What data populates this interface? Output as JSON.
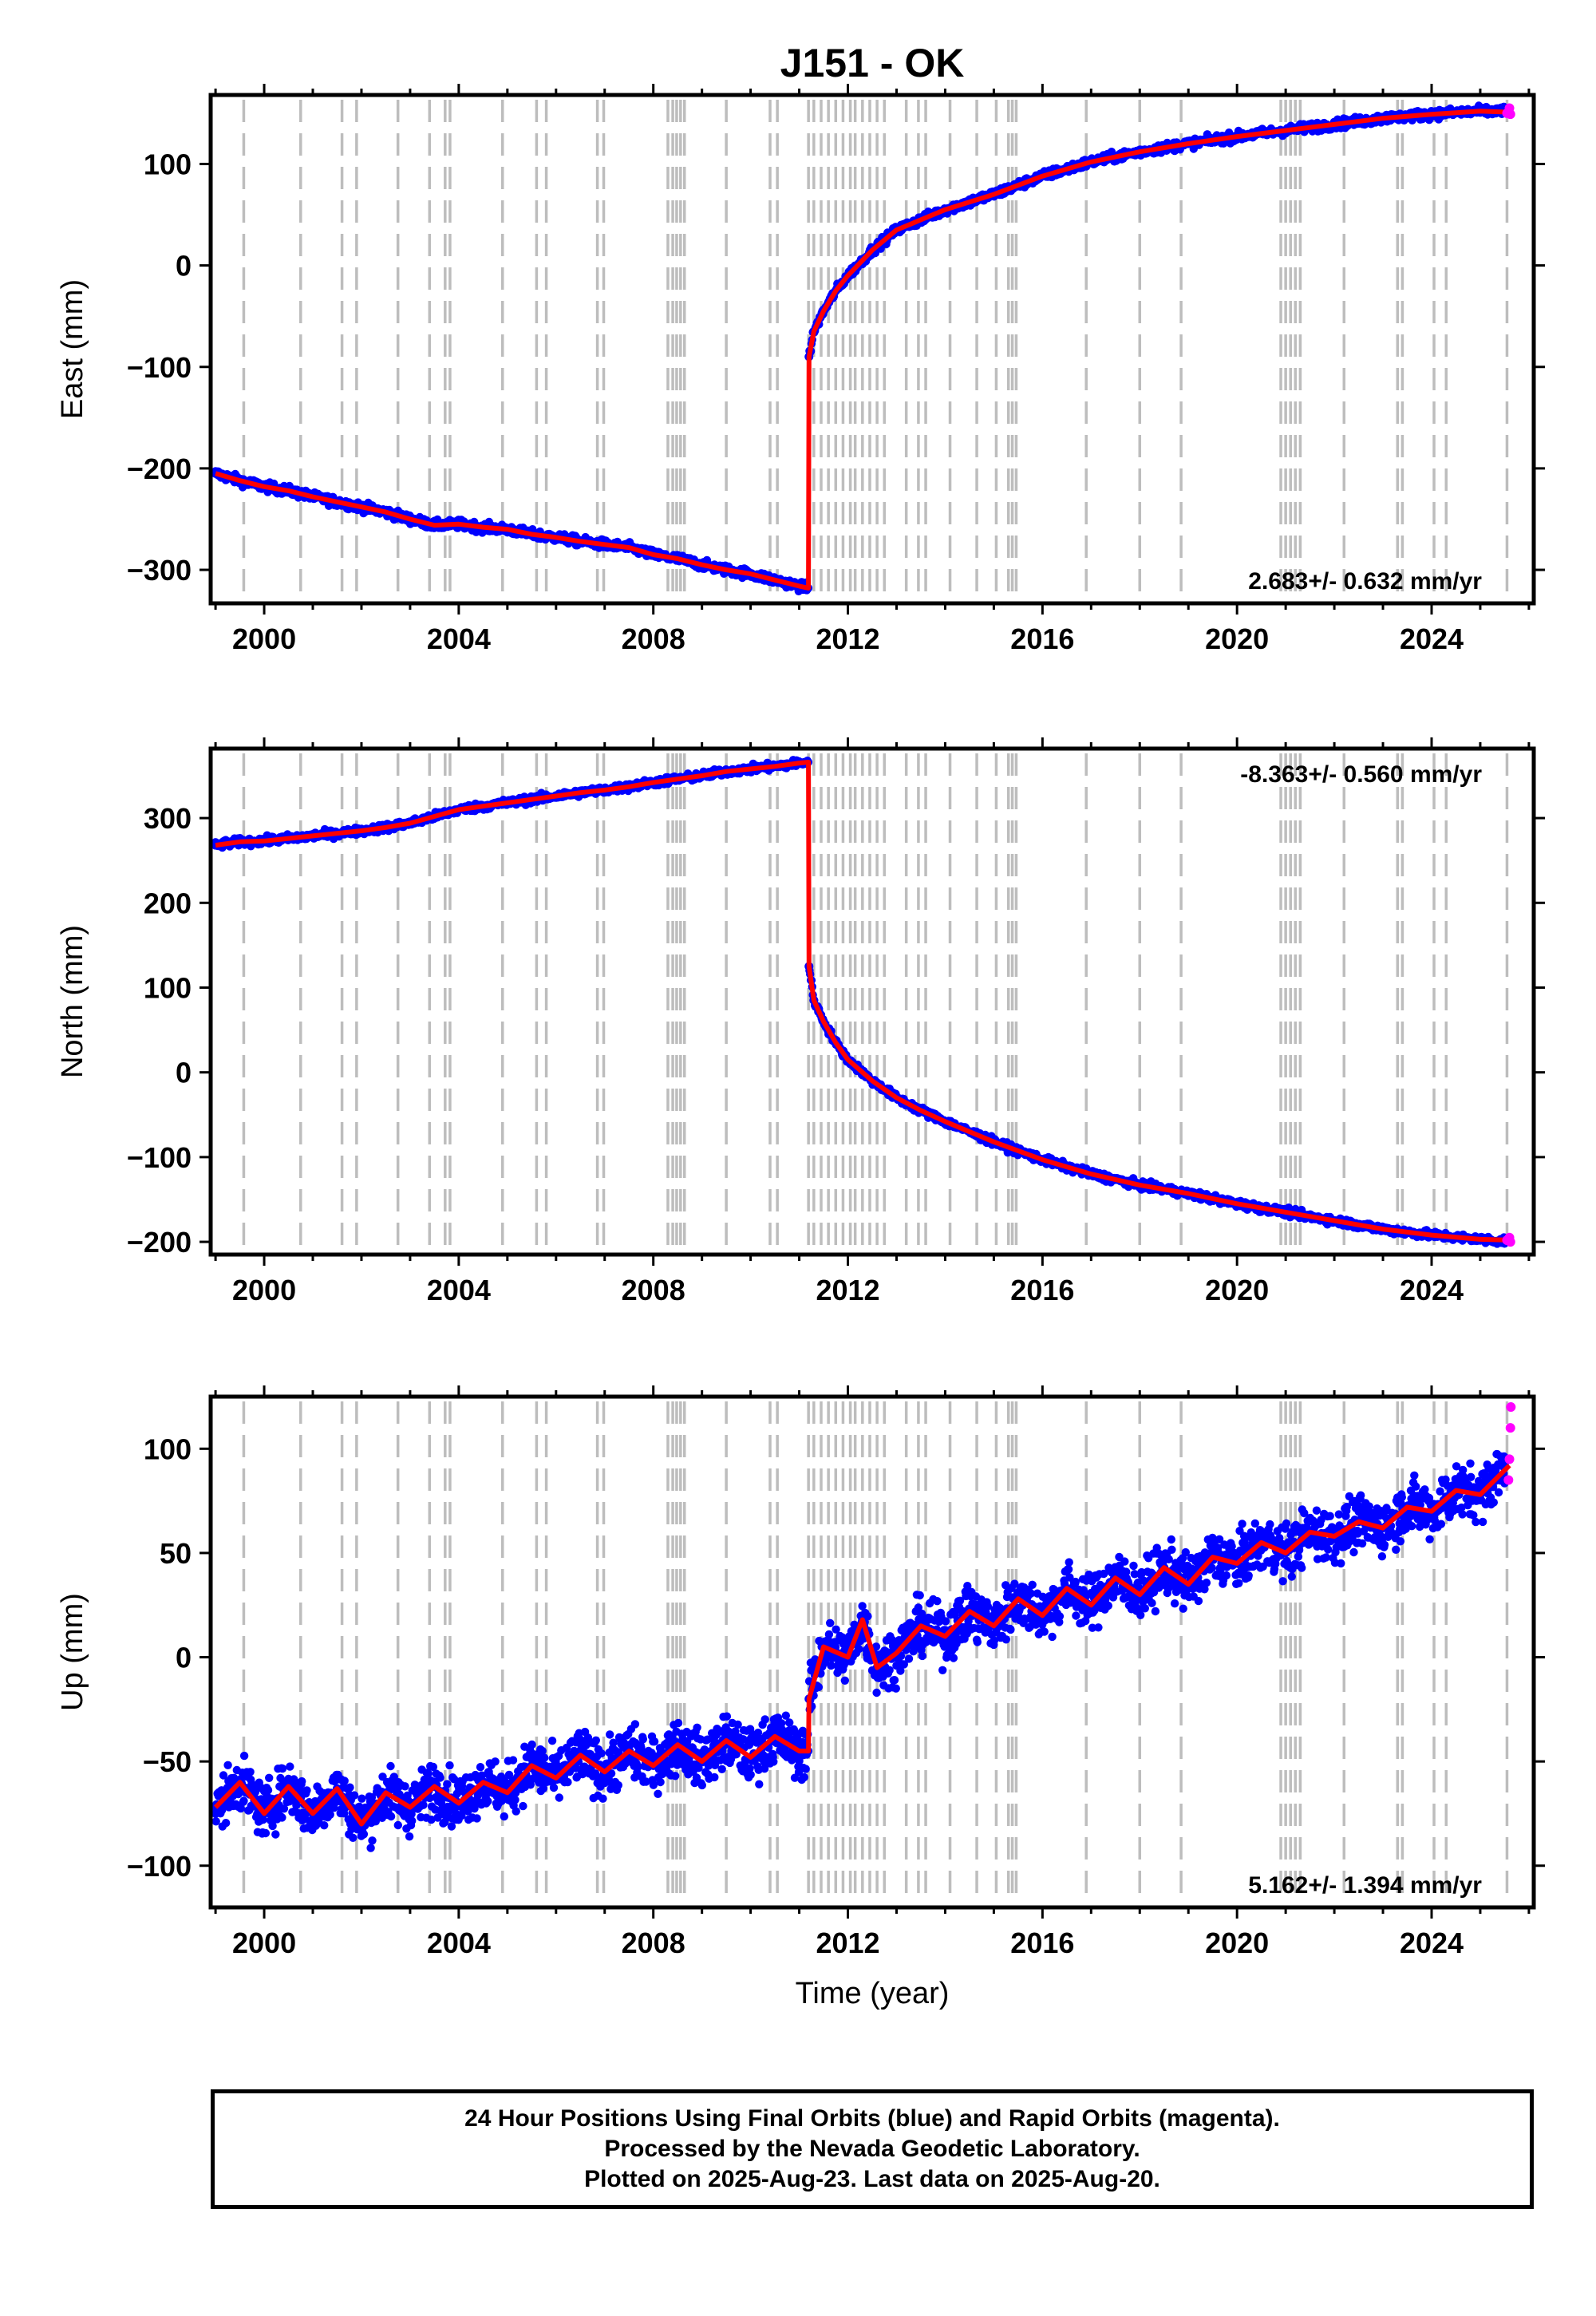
{
  "title": "J151 - OK",
  "chart_data": [
    {
      "type": "scatter",
      "panel": "east",
      "ylabel": "East (mm)",
      "xlabel": "",
      "xlim": [
        1998.9,
        2026.1
      ],
      "ylim": [
        -333,
        168
      ],
      "xticks": [
        2000,
        2004,
        2008,
        2012,
        2016,
        2020,
        2024
      ],
      "yticks": [
        100,
        0,
        -100,
        -200,
        -300
      ],
      "rate_text": "2.683+/- 0.632 mm/yr",
      "rate_position": "bottom-right",
      "jump_year": 2011.19,
      "series": [
        {
          "name": "Final Orbits",
          "color": "#0000ff",
          "kind": "points",
          "x": [
            1999.0,
            1999.5,
            2000.0,
            2000.5,
            2001.0,
            2001.5,
            2002.0,
            2002.5,
            2003.0,
            2003.5,
            2004.0,
            2004.5,
            2005.0,
            2005.5,
            2006.0,
            2006.5,
            2007.0,
            2007.5,
            2008.0,
            2008.5,
            2009.0,
            2009.5,
            2010.0,
            2010.5,
            2011.0,
            2011.18,
            2011.2,
            2011.3,
            2011.5,
            2011.75,
            2012.0,
            2012.5,
            2013.0,
            2013.5,
            2014.0,
            2015.0,
            2016.0,
            2017.0,
            2018.0,
            2019.0,
            2020.0,
            2021.0,
            2022.0,
            2023.0,
            2024.0,
            2025.0,
            2025.5
          ],
          "y": [
            -205,
            -212,
            -218,
            -222,
            -228,
            -233,
            -238,
            -243,
            -250,
            -256,
            -255,
            -258,
            -260,
            -265,
            -268,
            -272,
            -275,
            -278,
            -285,
            -289,
            -295,
            -300,
            -304,
            -310,
            -316,
            -318,
            -90,
            -65,
            -45,
            -25,
            -10,
            15,
            35,
            45,
            55,
            70,
            88,
            102,
            112,
            120,
            127,
            133,
            139,
            145,
            149,
            152,
            152
          ]
        },
        {
          "name": "Rapid Orbits",
          "color": "#ff00ff",
          "kind": "points",
          "x": [
            2025.55,
            2025.6,
            2025.62
          ],
          "y": [
            150,
            155,
            149
          ]
        },
        {
          "name": "Model",
          "color": "#ff0000",
          "kind": "line",
          "x": [
            1999.0,
            1999.5,
            2000.0,
            2000.5,
            2001.0,
            2001.5,
            2002.0,
            2002.5,
            2003.0,
            2003.5,
            2004.0,
            2004.5,
            2005.0,
            2005.5,
            2006.0,
            2006.5,
            2007.0,
            2007.5,
            2008.0,
            2008.5,
            2009.0,
            2009.5,
            2010.0,
            2010.5,
            2011.0,
            2011.19,
            2011.2,
            2011.3,
            2011.5,
            2011.75,
            2012.0,
            2012.5,
            2013.0,
            2013.5,
            2014.0,
            2015.0,
            2016.0,
            2017.0,
            2018.0,
            2019.0,
            2020.0,
            2021.0,
            2022.0,
            2023.0,
            2024.0,
            2025.0,
            2025.6
          ],
          "y": [
            -205,
            -212,
            -218,
            -222,
            -228,
            -233,
            -238,
            -243,
            -250,
            -256,
            -255,
            -258,
            -260,
            -265,
            -268,
            -272,
            -275,
            -278,
            -285,
            -289,
            -295,
            -300,
            -304,
            -310,
            -316,
            -318,
            -90,
            -65,
            -45,
            -25,
            -10,
            15,
            35,
            45,
            55,
            70,
            88,
            102,
            112,
            120,
            127,
            133,
            139,
            145,
            149,
            152,
            151
          ]
        }
      ]
    },
    {
      "type": "scatter",
      "panel": "north",
      "ylabel": "North (mm)",
      "xlabel": "",
      "xlim": [
        1998.9,
        2026.1
      ],
      "ylim": [
        -215,
        382
      ],
      "xticks": [
        2000,
        2004,
        2008,
        2012,
        2016,
        2020,
        2024
      ],
      "yticks": [
        300,
        200,
        100,
        0,
        -100,
        -200
      ],
      "rate_text": "-8.363+/- 0.560 mm/yr",
      "rate_position": "top-right",
      "jump_year": 2011.19,
      "series": [
        {
          "name": "Final Orbits",
          "color": "#0000ff",
          "kind": "points",
          "x": [
            1999.0,
            1999.5,
            2000.0,
            2000.5,
            2001.0,
            2001.5,
            2002.0,
            2002.5,
            2003.0,
            2003.5,
            2004.0,
            2004.5,
            2005.0,
            2005.5,
            2006.0,
            2006.5,
            2007.0,
            2007.5,
            2008.0,
            2008.5,
            2009.0,
            2009.5,
            2010.0,
            2010.5,
            2011.0,
            2011.18,
            2011.2,
            2011.3,
            2011.5,
            2011.75,
            2012.0,
            2012.5,
            2013.0,
            2013.5,
            2014.0,
            2015.0,
            2016.0,
            2017.0,
            2018.0,
            2019.0,
            2020.0,
            2021.0,
            2022.0,
            2023.0,
            2024.0,
            2025.0,
            2025.5
          ],
          "y": [
            268,
            272,
            273,
            276,
            279,
            282,
            285,
            289,
            294,
            302,
            310,
            314,
            318,
            322,
            326,
            330,
            333,
            337,
            342,
            346,
            350,
            355,
            358,
            361,
            365,
            366,
            125,
            85,
            60,
            35,
            15,
            -10,
            -30,
            -45,
            -58,
            -82,
            -103,
            -120,
            -133,
            -143,
            -155,
            -165,
            -175,
            -185,
            -192,
            -197,
            -199
          ]
        },
        {
          "name": "Rapid Orbits",
          "color": "#ff00ff",
          "kind": "points",
          "x": [
            2025.55,
            2025.6,
            2025.62
          ],
          "y": [
            -198,
            -195,
            -200
          ]
        },
        {
          "name": "Model",
          "color": "#ff0000",
          "kind": "line",
          "x": [
            1999.0,
            1999.5,
            2000.0,
            2000.5,
            2001.0,
            2001.5,
            2002.0,
            2002.5,
            2003.0,
            2003.5,
            2004.0,
            2004.5,
            2005.0,
            2005.5,
            2006.0,
            2006.5,
            2007.0,
            2007.5,
            2008.0,
            2008.5,
            2009.0,
            2009.5,
            2010.0,
            2010.5,
            2011.0,
            2011.19,
            2011.2,
            2011.3,
            2011.5,
            2011.75,
            2012.0,
            2012.5,
            2013.0,
            2013.5,
            2014.0,
            2015.0,
            2016.0,
            2017.0,
            2018.0,
            2019.0,
            2020.0,
            2021.0,
            2022.0,
            2023.0,
            2024.0,
            2025.0,
            2025.6
          ],
          "y": [
            268,
            272,
            273,
            276,
            279,
            282,
            285,
            289,
            294,
            302,
            310,
            314,
            318,
            322,
            326,
            330,
            333,
            337,
            342,
            346,
            350,
            355,
            358,
            361,
            365,
            366,
            125,
            85,
            60,
            35,
            15,
            -10,
            -30,
            -45,
            -58,
            -82,
            -103,
            -120,
            -133,
            -143,
            -155,
            -165,
            -175,
            -185,
            -192,
            -197,
            -198
          ]
        }
      ]
    },
    {
      "type": "scatter",
      "panel": "up",
      "ylabel": "Up (mm)",
      "xlabel": "Time (year)",
      "xlim": [
        1998.9,
        2026.1
      ],
      "ylim": [
        -120,
        125
      ],
      "xticks": [
        2000,
        2004,
        2008,
        2012,
        2016,
        2020,
        2024
      ],
      "yticks": [
        100,
        50,
        0,
        -50,
        -100
      ],
      "rate_text": "5.162+/- 1.394 mm/yr",
      "rate_position": "bottom-right",
      "jump_year": 2011.19,
      "series": [
        {
          "name": "Final Orbits",
          "color": "#0000ff",
          "kind": "points",
          "x": [
            1999.0,
            1999.5,
            2000.0,
            2000.5,
            2001.0,
            2001.5,
            2002.0,
            2002.5,
            2003.0,
            2003.5,
            2004.0,
            2004.5,
            2005.0,
            2005.5,
            2006.0,
            2006.5,
            2007.0,
            2007.5,
            2008.0,
            2008.5,
            2009.0,
            2009.5,
            2010.0,
            2010.5,
            2011.0,
            2011.18,
            2011.2,
            2011.5,
            2012.0,
            2012.3,
            2012.6,
            2013.0,
            2013.5,
            2014.0,
            2014.5,
            2015.0,
            2015.5,
            2016.0,
            2016.5,
            2017.0,
            2017.5,
            2018.0,
            2018.5,
            2019.0,
            2019.5,
            2020.0,
            2020.5,
            2021.0,
            2021.5,
            2022.0,
            2022.5,
            2023.0,
            2023.5,
            2024.0,
            2024.5,
            2025.0,
            2025.5
          ],
          "y": [
            -72,
            -60,
            -75,
            -62,
            -75,
            -63,
            -80,
            -65,
            -72,
            -62,
            -70,
            -60,
            -65,
            -52,
            -58,
            -47,
            -55,
            -45,
            -52,
            -42,
            -50,
            -40,
            -48,
            -38,
            -45,
            -45,
            -20,
            5,
            0,
            18,
            -5,
            2,
            15,
            10,
            22,
            15,
            28,
            20,
            33,
            25,
            38,
            30,
            43,
            35,
            48,
            45,
            55,
            50,
            60,
            58,
            65,
            62,
            72,
            70,
            80,
            78,
            92
          ]
        },
        {
          "name": "Rapid Orbits",
          "color": "#ff00ff",
          "kind": "points",
          "x": [
            2025.58,
            2025.6,
            2025.62,
            2025.63
          ],
          "y": [
            85,
            95,
            110,
            120
          ]
        },
        {
          "name": "Model",
          "color": "#ff0000",
          "kind": "line",
          "x": [
            1999.0,
            1999.5,
            2000.0,
            2000.5,
            2001.0,
            2001.5,
            2002.0,
            2002.5,
            2003.0,
            2003.5,
            2004.0,
            2004.5,
            2005.0,
            2005.5,
            2006.0,
            2006.5,
            2007.0,
            2007.5,
            2008.0,
            2008.5,
            2009.0,
            2009.5,
            2010.0,
            2010.5,
            2011.0,
            2011.19,
            2011.2,
            2011.5,
            2012.0,
            2012.3,
            2012.6,
            2013.0,
            2013.5,
            2014.0,
            2014.5,
            2015.0,
            2015.5,
            2016.0,
            2016.5,
            2017.0,
            2017.5,
            2018.0,
            2018.5,
            2019.0,
            2019.5,
            2020.0,
            2020.5,
            2021.0,
            2021.5,
            2022.0,
            2022.5,
            2023.0,
            2023.5,
            2024.0,
            2024.5,
            2025.0,
            2025.6
          ],
          "y": [
            -72,
            -60,
            -75,
            -62,
            -75,
            -63,
            -80,
            -65,
            -72,
            -62,
            -70,
            -60,
            -65,
            -52,
            -58,
            -47,
            -55,
            -45,
            -52,
            -42,
            -50,
            -40,
            -48,
            -38,
            -45,
            -45,
            -20,
            5,
            0,
            18,
            -5,
            2,
            15,
            10,
            22,
            15,
            28,
            20,
            33,
            25,
            38,
            30,
            43,
            35,
            48,
            45,
            55,
            50,
            60,
            58,
            65,
            62,
            72,
            70,
            80,
            78,
            92
          ]
        }
      ]
    }
  ],
  "event_lines": [
    1999.58,
    2000.75,
    2001.6,
    2001.9,
    2002.75,
    2003.4,
    2003.72,
    2003.82,
    2004.9,
    2005.6,
    2005.8,
    2006.85,
    2006.98,
    2008.3,
    2008.4,
    2008.48,
    2008.56,
    2008.64,
    2009.5,
    2010.4,
    2010.55,
    2011.19,
    2011.3,
    2011.45,
    2011.6,
    2011.75,
    2011.9,
    2012.05,
    2012.15,
    2012.3,
    2012.45,
    2012.6,
    2012.75,
    2013.2,
    2013.45,
    2013.6,
    2014.1,
    2014.65,
    2015.05,
    2015.3,
    2015.38,
    2015.46,
    2016.9,
    2018.0,
    2018.85,
    2020.9,
    2021.0,
    2021.1,
    2021.2,
    2021.3,
    2022.2,
    2023.3,
    2023.4,
    2024.05,
    2024.3,
    2025.55
  ],
  "footer": {
    "line1": "24 Hour Positions Using Final Orbits (blue) and Rapid Orbits (magenta).",
    "line2": "Processed by the Nevada Geodetic Laboratory.",
    "line3": "Plotted on 2025-Aug-23. Last data on 2025-Aug-20."
  }
}
